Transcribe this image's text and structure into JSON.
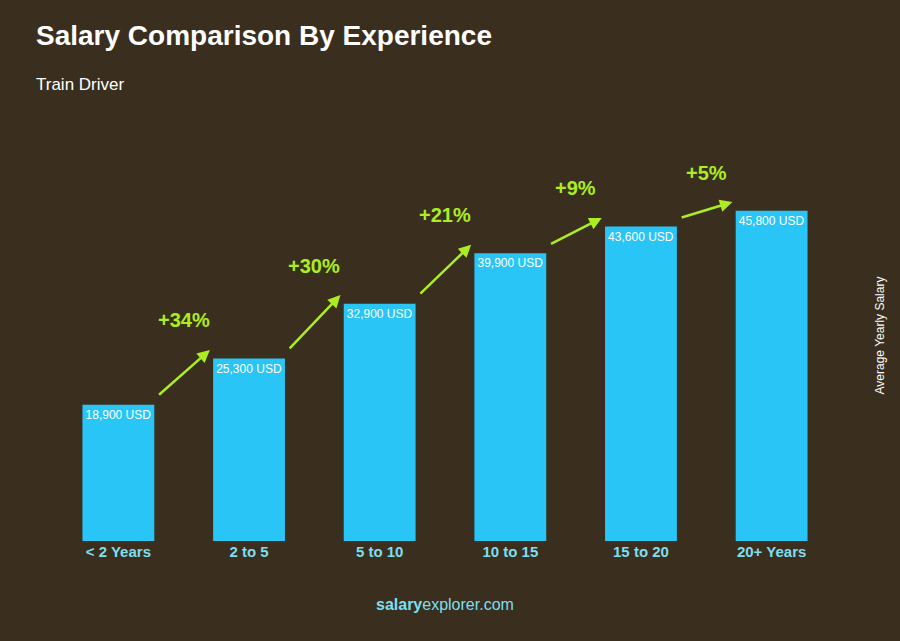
{
  "chart_data": {
    "type": "bar",
    "title": "Salary Comparison By Experience",
    "subtitle": "Train Driver",
    "ylabel": "Average Yearly Salary",
    "footer": [
      "salary",
      "explorer.com"
    ],
    "categories": [
      "< 2 Years",
      "2 to 5",
      "5 to 10",
      "10 to 15",
      "15 to 20",
      "20+ Years"
    ],
    "values": [
      18900,
      25300,
      32900,
      39900,
      43600,
      45800
    ],
    "value_labels": [
      "18,900 USD",
      "25,300 USD",
      "32,900 USD",
      "39,900 USD",
      "43,600 USD",
      "45,800 USD"
    ],
    "data_labels": true,
    "color": "#29C5F6",
    "annotations": [
      {
        "text": "+34%",
        "color": "#aaee22"
      },
      {
        "text": "+30%",
        "color": "#aaee22"
      },
      {
        "text": "+21%",
        "color": "#aaee22"
      },
      {
        "text": "+9%",
        "color": "#aaee22"
      },
      {
        "text": "+5%",
        "color": "#aaee22"
      }
    ],
    "ylim": [
      0,
      57000
    ],
    "tick_labels": "x",
    "grid": false
  }
}
